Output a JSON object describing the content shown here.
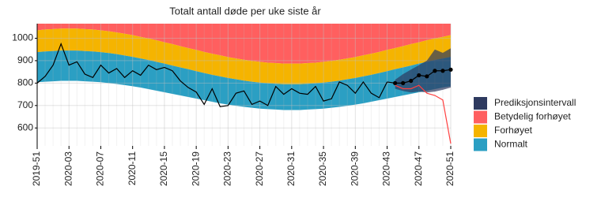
{
  "chart_data": {
    "type": "band-line",
    "title": "Totalt antall døde per uke siste år",
    "categories": [
      "2019-51",
      null,
      null,
      null,
      "2020-03",
      null,
      null,
      null,
      "2020-07",
      null,
      null,
      null,
      "2020-11",
      null,
      null,
      null,
      "2020-15",
      null,
      null,
      null,
      "2020-19",
      null,
      null,
      null,
      "2020-23",
      null,
      null,
      null,
      "2020-27",
      null,
      null,
      null,
      "2020-31",
      null,
      null,
      null,
      "2020-35",
      null,
      null,
      null,
      "2020-39",
      null,
      null,
      null,
      "2020-43",
      null,
      null,
      null,
      "2020-47",
      null,
      null,
      null,
      "2020-51"
    ],
    "ylim": [
      520,
      1065
    ],
    "yticks": [
      600,
      700,
      800,
      900,
      1000
    ],
    "grid": true,
    "legend": "right",
    "series": [
      {
        "name": "Prediksjonsintervall",
        "color": "#2e3a5f",
        "low": [
          null,
          null,
          null,
          null,
          null,
          null,
          null,
          null,
          null,
          null,
          null,
          null,
          null,
          null,
          null,
          null,
          null,
          null,
          null,
          null,
          null,
          null,
          null,
          null,
          null,
          null,
          null,
          null,
          null,
          null,
          null,
          null,
          null,
          null,
          null,
          null,
          null,
          null,
          null,
          null,
          null,
          null,
          null,
          null,
          null,
          775,
          765,
          758,
          762,
          758,
          762,
          770,
          780
        ],
        "high": [
          null,
          null,
          null,
          null,
          null,
          null,
          null,
          null,
          null,
          null,
          null,
          null,
          null,
          null,
          null,
          null,
          null,
          null,
          null,
          null,
          null,
          null,
          null,
          null,
          null,
          null,
          null,
          null,
          null,
          null,
          null,
          null,
          null,
          null,
          null,
          null,
          null,
          null,
          null,
          null,
          null,
          null,
          null,
          null,
          null,
          815,
          840,
          860,
          880,
          900,
          950,
          935,
          955
        ]
      },
      {
        "name": "Betydelig forhøyet",
        "color": "#ff5f5f"
      },
      {
        "name": "Forhøyet",
        "color": "#f5b400",
        "values": [
          1035,
          1039,
          1041,
          1043,
          1043,
          1043,
          1041,
          1039,
          1035,
          1031,
          1026,
          1020,
          1014,
          1006,
          999,
          991,
          982,
          974,
          965,
          956,
          948,
          939,
          931,
          924,
          916,
          910,
          904,
          899,
          895,
          891,
          889,
          887,
          887,
          887,
          889,
          891,
          895,
          899,
          904,
          910,
          916,
          924,
          931,
          939,
          948,
          956,
          965,
          974,
          982,
          991,
          999,
          1006,
          1014
        ]
      },
      {
        "name": "Normalt",
        "color": "#2b9fc3",
        "low": [
          804,
          806,
          808,
          810,
          810,
          810,
          808,
          806,
          804,
          800,
          796,
          791,
          786,
          780,
          773,
          766,
          759,
          752,
          745,
          738,
          731,
          724,
          717,
          710,
          704,
          699,
          694,
          690,
          686,
          684,
          682,
          680,
          680,
          680,
          682,
          684,
          686,
          690,
          694,
          699,
          704,
          710,
          717,
          724,
          731,
          738,
          745,
          752,
          759,
          766,
          773,
          780,
          786
        ],
        "high": [
          938,
          941,
          943,
          945,
          945,
          945,
          943,
          941,
          938,
          934,
          929,
          923,
          917,
          910,
          903,
          895,
          887,
          878,
          870,
          862,
          853,
          845,
          837,
          830,
          823,
          817,
          811,
          806,
          802,
          799,
          797,
          795,
          795,
          795,
          797,
          799,
          802,
          806,
          811,
          817,
          823,
          830,
          837,
          845,
          853,
          862,
          870,
          878,
          887,
          895,
          903,
          910,
          917
        ]
      }
    ],
    "lines": [
      {
        "color": "#000000",
        "markers": false,
        "values": [
          800,
          830,
          880,
          975,
          880,
          895,
          840,
          825,
          880,
          845,
          865,
          825,
          855,
          835,
          880,
          860,
          870,
          855,
          810,
          780,
          760,
          705,
          775,
          695,
          700,
          755,
          765,
          705,
          720,
          700,
          785,
          750,
          775,
          755,
          750,
          785,
          720,
          730,
          805,
          790,
          755,
          805,
          755,
          735,
          805,
          null,
          null,
          null,
          null,
          null,
          null,
          null,
          null
        ]
      },
      {
        "color": "#000000",
        "markers": true,
        "values": [
          null,
          null,
          null,
          null,
          null,
          null,
          null,
          null,
          null,
          null,
          null,
          null,
          null,
          null,
          null,
          null,
          null,
          null,
          null,
          null,
          null,
          null,
          null,
          null,
          null,
          null,
          null,
          null,
          null,
          null,
          null,
          null,
          null,
          null,
          null,
          null,
          null,
          null,
          null,
          null,
          null,
          null,
          null,
          null,
          null,
          800,
          800,
          810,
          835,
          830,
          855,
          855,
          860
        ]
      },
      {
        "color": "#ff4040",
        "markers": false,
        "values": [
          null,
          null,
          null,
          null,
          null,
          null,
          null,
          null,
          null,
          null,
          null,
          null,
          null,
          null,
          null,
          null,
          null,
          null,
          null,
          null,
          null,
          null,
          null,
          null,
          null,
          null,
          null,
          null,
          null,
          null,
          null,
          null,
          null,
          null,
          null,
          null,
          null,
          null,
          null,
          null,
          null,
          null,
          null,
          null,
          null,
          790,
          775,
          775,
          790,
          755,
          745,
          725,
          530
        ]
      }
    ]
  }
}
